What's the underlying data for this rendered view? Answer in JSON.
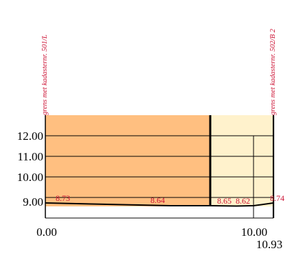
{
  "boundaries": [
    {
      "label": "grens met kadasternr. 501/L",
      "color": "#cc1133"
    },
    {
      "label": "grens met kadasternr. 502/B 2",
      "color": "#cc1133"
    }
  ],
  "y_axis": {
    "labels": [
      "12.00",
      "11.00",
      "10.00",
      "9.00"
    ]
  },
  "x_axis": {
    "labels": [
      "0.00",
      "10.00",
      "10.93"
    ]
  },
  "ground_elevations": [
    {
      "label": "8.73",
      "color": "#cc1133"
    },
    {
      "label": "8.64",
      "color": "#cc1133"
    },
    {
      "label": "8.65",
      "color": "#cc1133"
    },
    {
      "label": "8.62",
      "color": "#cc1133"
    },
    {
      "label": "8.74",
      "color": "#cc1133"
    }
  ],
  "zones": [
    {
      "name": "left-zone",
      "color": "#ffbf80"
    },
    {
      "name": "right-zone",
      "color": "#fff2cc"
    }
  ]
}
